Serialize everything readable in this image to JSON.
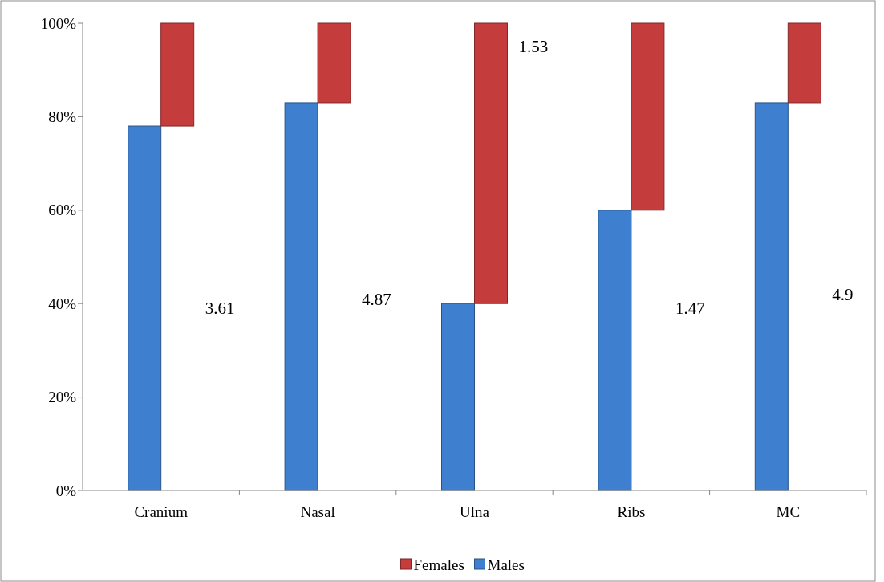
{
  "chart_data": {
    "type": "bar",
    "stacked": true,
    "categories": [
      "Cranium",
      "Nasal",
      "Ulna",
      "Ribs",
      "MC"
    ],
    "series": [
      {
        "name": "Males",
        "color": "#3f7fcf",
        "values": [
          78,
          83,
          40,
          60,
          83
        ]
      },
      {
        "name": "Females",
        "color": "#c43c3c",
        "values": [
          22,
          17,
          60,
          40,
          17
        ]
      }
    ],
    "ylim": [
      0,
      100
    ],
    "yticks": [
      {
        "value": 0,
        "label": "0%"
      },
      {
        "value": 20,
        "label": "20%"
      },
      {
        "value": 40,
        "label": "40%"
      },
      {
        "value": 60,
        "label": "60%"
      },
      {
        "value": 80,
        "label": "80%"
      },
      {
        "value": 100,
        "label": "100%"
      }
    ],
    "annotations": [
      {
        "text": "3.61",
        "x": "Cranium",
        "y": 39
      },
      {
        "text": "4.87",
        "x": "Nasal",
        "y": 41
      },
      {
        "text": "1.53",
        "x": "Ulna",
        "y": 95
      },
      {
        "text": "1.47",
        "x": "Ribs",
        "y": 39
      },
      {
        "text": "4.9",
        "x": "MC",
        "y": 42
      }
    ],
    "legend": "bottom",
    "grid": false
  }
}
